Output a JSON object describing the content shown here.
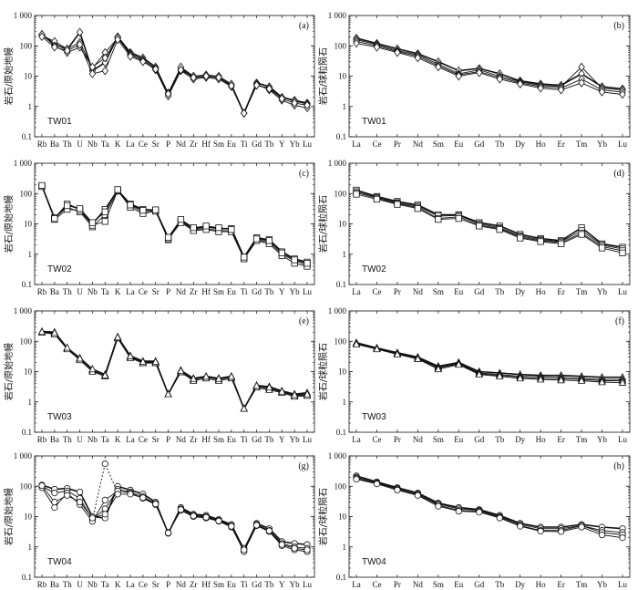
{
  "chart_data": [
    {
      "type": "line",
      "panel_label": "(a)",
      "sample": "TW01",
      "ylabel": "岩石/原始地幔",
      "x": [
        "Rb",
        "Ba",
        "Th",
        "U",
        "Nb",
        "Ta",
        "K",
        "La",
        "Ce",
        "Sr",
        "P",
        "Nd",
        "Zr",
        "Hf",
        "Sm",
        "Eu",
        "Ti",
        "Gd",
        "Tb",
        "Y",
        "Yb",
        "Lu"
      ],
      "ylim": [
        0.1,
        1000
      ],
      "yscale": "log",
      "yticks": [
        "0.1",
        "1",
        "10",
        "100",
        "1 000"
      ],
      "marker": "diamond",
      "series": [
        {
          "values": [
            230,
            115,
            75,
            280,
            15,
            28,
            200,
            60,
            40,
            20,
            2.5,
            18,
            9,
            10,
            9,
            5,
            0.6,
            6,
            4.5,
            2,
            1.6,
            1.3
          ]
        },
        {
          "values": [
            220,
            140,
            80,
            130,
            18,
            60,
            180,
            55,
            35,
            18,
            2.8,
            20,
            10,
            11,
            10,
            5.5,
            0.6,
            5,
            4,
            2,
            1.5,
            1.2
          ]
        },
        {
          "values": [
            240,
            100,
            60,
            90,
            20,
            40,
            190,
            50,
            32,
            16,
            2.2,
            15,
            8,
            9,
            8,
            4.5,
            0.6,
            5.5,
            3.5,
            1.6,
            1.1,
            0.9
          ]
        },
        {
          "values": [
            200,
            90,
            70,
            110,
            12,
            15,
            160,
            45,
            30,
            17,
            2.6,
            16,
            9,
            10,
            9,
            4.8,
            0.6,
            5,
            3.8,
            1.8,
            1.3,
            1.1
          ]
        }
      ]
    },
    {
      "type": "line",
      "panel_label": "(b)",
      "sample": "TW01",
      "ylabel": "岩石/球粒陨石",
      "x": [
        "La",
        "Ce",
        "Pr",
        "Nd",
        "Sm",
        "Eu",
        "Gd",
        "Tb",
        "Dy",
        "Ho",
        "Er",
        "Tm",
        "Yb",
        "Lu"
      ],
      "ylim": [
        0.1,
        1000
      ],
      "yscale": "log",
      "yticks": [
        "0.1",
        "1",
        "10",
        "100",
        "1 000"
      ],
      "marker": "diamond",
      "series": [
        {
          "values": [
            180,
            120,
            80,
            55,
            30,
            15,
            18,
            12,
            7,
            5.5,
            5,
            12,
            4.5,
            3.8
          ]
        },
        {
          "values": [
            160,
            110,
            70,
            50,
            25,
            12,
            16,
            10,
            6.5,
            5,
            4.5,
            20,
            4,
            3.5
          ]
        },
        {
          "values": [
            140,
            100,
            65,
            45,
            22,
            11,
            14,
            9,
            6,
            4.5,
            4,
            8,
            3.5,
            3
          ]
        },
        {
          "values": [
            120,
            90,
            60,
            40,
            20,
            10,
            13,
            8,
            5.5,
            4,
            3.5,
            6,
            3,
            2.5
          ]
        }
      ]
    },
    {
      "type": "line",
      "panel_label": "(c)",
      "sample": "TW02",
      "ylabel": "岩石/原始地幔",
      "x": [
        "Rb",
        "Ba",
        "Th",
        "U",
        "Nb",
        "Ta",
        "K",
        "La",
        "Ce",
        "Sr",
        "P",
        "Nd",
        "Zr",
        "Hf",
        "Sm",
        "Eu",
        "Ti",
        "Gd",
        "Tb",
        "Y",
        "Yb",
        "Lu"
      ],
      "ylim": [
        0.1,
        1000
      ],
      "yscale": "log",
      "yticks": [
        "0.1",
        "1",
        "10",
        "100",
        "1 000"
      ],
      "marker": "square",
      "series": [
        {
          "values": [
            180,
            15,
            45,
            30,
            10,
            30,
            130,
            45,
            30,
            28,
            3.5,
            13,
            7,
            8,
            7,
            7,
            0.8,
            3.5,
            3,
            1.2,
            0.7,
            0.55
          ]
        },
        {
          "values": [
            175,
            16,
            35,
            25,
            8,
            20,
            120,
            40,
            25,
            27,
            3,
            12,
            6.5,
            7,
            6,
            6,
            0.75,
            3,
            2.5,
            1,
            0.6,
            0.45
          ]
        },
        {
          "values": [
            170,
            14,
            30,
            28,
            9,
            12,
            125,
            35,
            22,
            26,
            3.2,
            11,
            6,
            6.5,
            5.5,
            5.5,
            0.7,
            2.8,
            2.2,
            0.9,
            0.5,
            0.4
          ]
        },
        {
          "values": [
            185,
            15,
            40,
            32,
            11,
            25,
            135,
            42,
            28,
            29,
            3.6,
            14,
            7.5,
            8.5,
            7.5,
            6.5,
            0.8,
            3.2,
            2.8,
            1.1,
            0.65,
            0.5
          ]
        }
      ]
    },
    {
      "type": "line",
      "panel_label": "(d)",
      "sample": "TW02",
      "ylabel": "岩石/球粒陨石",
      "x": [
        "La",
        "Ce",
        "Pr",
        "Nd",
        "Sm",
        "Eu",
        "Gd",
        "Tb",
        "Dy",
        "Ho",
        "Er",
        "Tm",
        "Yb",
        "Lu"
      ],
      "ylim": [
        0.1,
        1000
      ],
      "yscale": "log",
      "yticks": [
        "0.1",
        "1",
        "10",
        "100",
        "1 000"
      ],
      "marker": "square",
      "series": [
        {
          "values": [
            130,
            80,
            55,
            42,
            20,
            20,
            11,
            8.5,
            4.5,
            3.3,
            2.8,
            7.5,
            2.2,
            1.7
          ]
        },
        {
          "values": [
            115,
            75,
            50,
            38,
            18,
            19,
            10,
            7.5,
            4,
            3,
            2.6,
            6,
            2,
            1.5
          ]
        },
        {
          "values": [
            105,
            70,
            47,
            35,
            15,
            17,
            9,
            7,
            3.7,
            2.8,
            2.4,
            5,
            1.8,
            1.3
          ]
        },
        {
          "values": [
            95,
            65,
            44,
            32,
            14,
            15,
            8.5,
            6.5,
            3.4,
            2.6,
            2.2,
            4.5,
            1.6,
            1.1
          ]
        }
      ]
    },
    {
      "type": "line",
      "panel_label": "(e)",
      "sample": "TW03",
      "ylabel": "岩石/原始地幔",
      "x": [
        "Rb",
        "Ba",
        "Th",
        "U",
        "Nb",
        "Ta",
        "K",
        "La",
        "Ce",
        "Sr",
        "P",
        "Nd",
        "Zr",
        "Hf",
        "Sm",
        "Eu",
        "Ti",
        "Gd",
        "Tb",
        "Y",
        "Yb",
        "Lu"
      ],
      "ylim": [
        0.1,
        1000
      ],
      "yscale": "log",
      "yticks": [
        "0.1",
        "1",
        "10",
        "100",
        "1 000"
      ],
      "marker": "triangle",
      "series": [
        {
          "values": [
            210,
            200,
            60,
            28,
            12,
            8,
            140,
            33,
            22,
            22,
            1.8,
            11,
            6,
            7,
            6,
            7,
            0.6,
            3.5,
            3.2,
            2.3,
            1.8,
            2
          ]
        },
        {
          "values": [
            200,
            180,
            58,
            26,
            11,
            7,
            130,
            30,
            20,
            20,
            1.8,
            10,
            5.5,
            6.5,
            5.5,
            6.5,
            0.6,
            3.2,
            2.8,
            2.1,
            1.6,
            1.7
          ]
        },
        {
          "values": [
            195,
            170,
            55,
            24,
            10,
            7,
            125,
            28,
            19,
            19,
            1.8,
            9.5,
            5,
            6,
            5,
            6,
            0.6,
            3,
            2.5,
            2,
            1.5,
            1.6
          ]
        },
        {
          "values": [
            205,
            190,
            62,
            27,
            12,
            7.5,
            135,
            32,
            21,
            21,
            1.8,
            10.5,
            5.8,
            6.8,
            5.8,
            6.8,
            0.6,
            3.4,
            3,
            2.2,
            1.7,
            1.8
          ]
        }
      ]
    },
    {
      "type": "line",
      "panel_label": "(f)",
      "sample": "TW03",
      "ylabel": "岩石/球粒陨石",
      "x": [
        "La",
        "Ce",
        "Pr",
        "Nd",
        "Sm",
        "Eu",
        "Gd",
        "Tb",
        "Dy",
        "Ho",
        "Er",
        "Tm",
        "Yb",
        "Lu"
      ],
      "ylim": [
        0.1,
        1000
      ],
      "yscale": "log",
      "yticks": [
        "0.1",
        "1",
        "10",
        "100",
        "1 000"
      ],
      "marker": "triangle",
      "series": [
        {
          "values": [
            90,
            60,
            42,
            30,
            15,
            20,
            10,
            9,
            8,
            7.5,
            7.5,
            7,
            6.5,
            6.5
          ]
        },
        {
          "values": [
            85,
            58,
            40,
            28,
            14,
            19,
            9,
            8,
            7,
            6.8,
            6.5,
            6,
            5.5,
            5.5
          ]
        },
        {
          "values": [
            82,
            56,
            38,
            27,
            13,
            18,
            8.5,
            7.5,
            6.5,
            6,
            5.8,
            5.5,
            5,
            5
          ]
        },
        {
          "values": [
            80,
            55,
            37,
            26,
            12,
            17,
            8,
            7,
            6,
            5.5,
            5.2,
            5,
            4.5,
            4.3
          ]
        }
      ]
    },
    {
      "type": "line",
      "panel_label": "(g)",
      "sample": "TW04",
      "ylabel": "岩石/原始地幔",
      "x": [
        "Rb",
        "Ba",
        "Th",
        "U",
        "Nb",
        "Ta",
        "K",
        "La",
        "Ce",
        "Sr",
        "P",
        "Nd",
        "Zr",
        "Hf",
        "Sm",
        "Eu",
        "Ti",
        "Gd",
        "Tb",
        "Y",
        "Yb",
        "Lu"
      ],
      "ylim": [
        0.1,
        1000
      ],
      "yscale": "log",
      "yticks": [
        "0.1",
        "1",
        "10",
        "100",
        "1 000"
      ],
      "marker": "circle",
      "series": [
        {
          "values": [
            110,
            80,
            85,
            65,
            10,
            9,
            100,
            75,
            55,
            30,
            2.8,
            20,
            12,
            11,
            8,
            5.5,
            0.8,
            6,
            4,
            1.5,
            1.3,
            1.2
          ]
        },
        {
          "values": [
            100,
            60,
            70,
            40,
            8,
            18,
            80,
            65,
            45,
            27,
            2.9,
            18,
            11,
            10,
            7.5,
            5,
            0.9,
            5.5,
            3.5,
            1.3,
            1,
            0.9
          ]
        },
        {
          "values": [
            90,
            20,
            60,
            25,
            7,
            35,
            70,
            60,
            40,
            25,
            3,
            16,
            10,
            9,
            7,
            4.5,
            0.7,
            5,
            3.2,
            1.1,
            0.8,
            0.7
          ]
        },
        {
          "values": [
            105,
            30,
            50,
            30,
            9,
            12,
            55,
            55,
            42,
            26,
            2.9,
            17,
            10.5,
            9.5,
            7.2,
            4.8,
            0.8,
            5.2,
            3.4,
            1.2,
            0.9,
            0.8
          ]
        }
      ],
      "dashed_series": {
        "values": [
          null,
          null,
          null,
          null,
          8,
          550,
          60
        ]
      }
    },
    {
      "type": "line",
      "panel_label": "(h)",
      "sample": "TW04",
      "ylabel": "岩石/球粒陨石",
      "x": [
        "La",
        "Ce",
        "Pr",
        "Nd",
        "Sm",
        "Eu",
        "Gd",
        "Tb",
        "Dy",
        "Ho",
        "Er",
        "Tm",
        "Yb",
        "Lu"
      ],
      "ylim": [
        0.1,
        1000
      ],
      "yscale": "log",
      "yticks": [
        "0.1",
        "1",
        "10",
        "100",
        "1 000"
      ],
      "marker": "circle",
      "series": [
        {
          "values": [
            220,
            140,
            90,
            60,
            28,
            20,
            17,
            11,
            6,
            4.5,
            4.5,
            5.5,
            4.5,
            4
          ]
        },
        {
          "values": [
            200,
            130,
            85,
            56,
            26,
            18,
            16,
            10,
            5.5,
            4,
            4,
            5,
            3.5,
            3
          ]
        },
        {
          "values": [
            185,
            125,
            80,
            52,
            24,
            16,
            15,
            9.5,
            5,
            3.5,
            3.5,
            5,
            3,
            2.5
          ]
        },
        {
          "values": [
            170,
            120,
            75,
            50,
            22,
            15,
            14,
            9,
            4.8,
            3.3,
            3.2,
            4.5,
            2.5,
            2
          ]
        }
      ]
    }
  ]
}
